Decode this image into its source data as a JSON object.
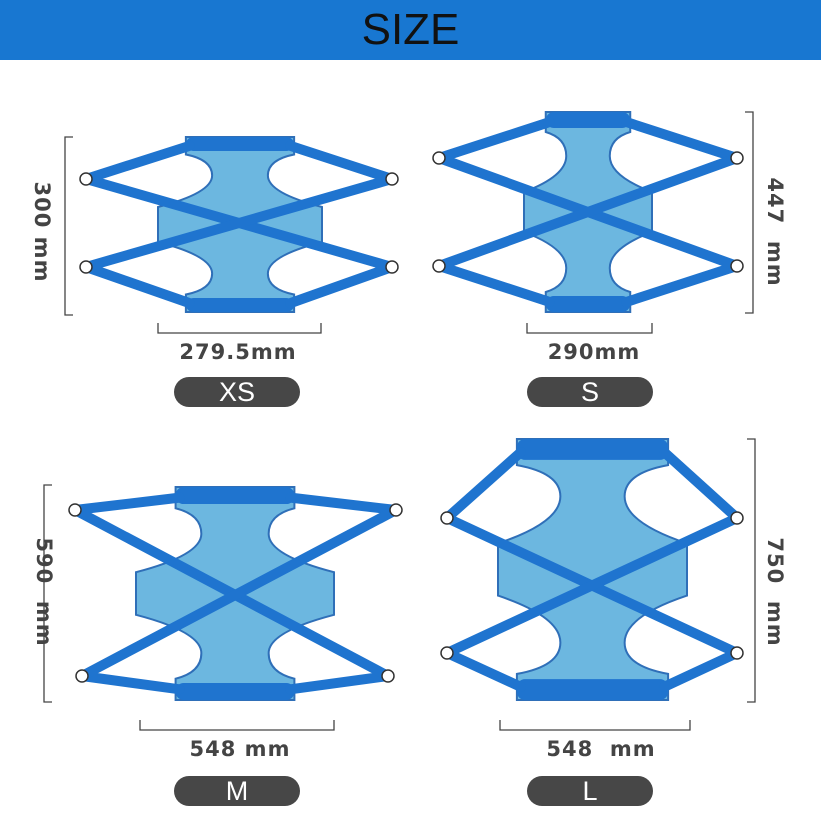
{
  "header": {
    "title": "SIZE"
  },
  "colors": {
    "header": "#1877d1",
    "strap": "#1f74cf",
    "body_fill": "#6cb7e0",
    "pill": "#474747"
  },
  "sizes": [
    {
      "label": "XS",
      "height": "300 mm",
      "width": "279.5mm"
    },
    {
      "label": "S",
      "height": "447  mm",
      "width": "290mm"
    },
    {
      "label": "M",
      "height": "590  mm",
      "width": "548 mm"
    },
    {
      "label": "L",
      "height": "750  mm",
      "width": "548  mm"
    }
  ]
}
